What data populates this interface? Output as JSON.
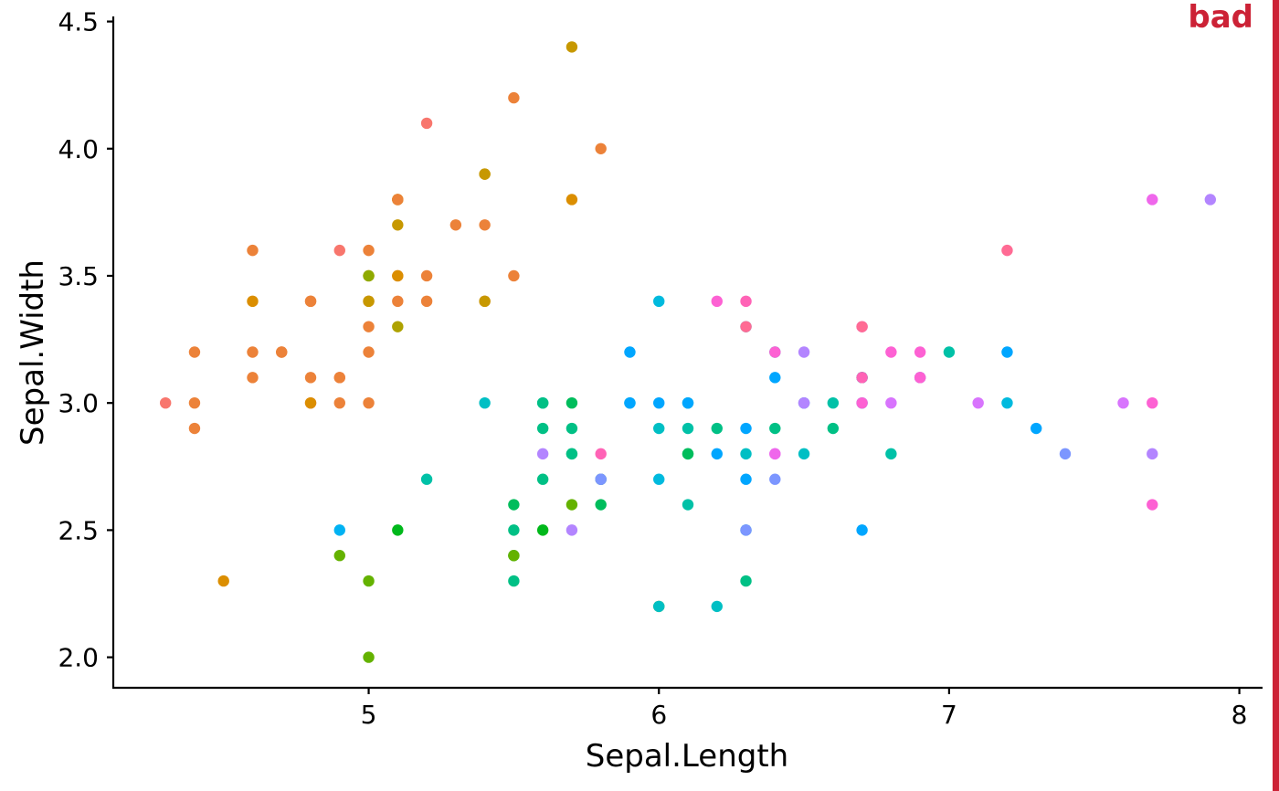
{
  "badge": {
    "label": "bad",
    "color": "#cc2236"
  },
  "chart_data": {
    "type": "scatter",
    "xlabel": "Sepal.Length",
    "ylabel": "Sepal.Width",
    "xlim": [
      4.12,
      8.08
    ],
    "ylim": [
      1.88,
      4.52
    ],
    "x_ticks": [
      {
        "value": 5,
        "label": "5"
      },
      {
        "value": 6,
        "label": "6"
      },
      {
        "value": 7,
        "label": "7"
      },
      {
        "value": 8,
        "label": "8"
      }
    ],
    "y_ticks": [
      {
        "value": 2.0,
        "label": "2.0"
      },
      {
        "value": 2.5,
        "label": "2.5"
      },
      {
        "value": 3.0,
        "label": "3.0"
      },
      {
        "value": 3.5,
        "label": "3.5"
      },
      {
        "value": 4.0,
        "label": "4.0"
      },
      {
        "value": 4.5,
        "label": "4.5"
      }
    ],
    "grid": false,
    "legend": "none",
    "color_scale": "discrete hue by group",
    "points": [
      [
        5.1,
        3.5,
        0.2
      ],
      [
        4.9,
        3.0,
        0.2
      ],
      [
        4.7,
        3.2,
        0.2
      ],
      [
        4.6,
        3.1,
        0.2
      ],
      [
        5.0,
        3.6,
        0.2
      ],
      [
        5.4,
        3.9,
        0.4
      ],
      [
        4.6,
        3.4,
        0.3
      ],
      [
        5.0,
        3.4,
        0.2
      ],
      [
        4.4,
        2.9,
        0.2
      ],
      [
        4.9,
        3.1,
        0.1
      ],
      [
        5.4,
        3.7,
        0.2
      ],
      [
        4.8,
        3.4,
        0.2
      ],
      [
        4.8,
        3.0,
        0.1
      ],
      [
        4.3,
        3.0,
        0.1
      ],
      [
        5.8,
        4.0,
        0.2
      ],
      [
        5.7,
        4.4,
        0.4
      ],
      [
        5.4,
        3.9,
        0.4
      ],
      [
        5.1,
        3.5,
        0.3
      ],
      [
        5.7,
        3.8,
        0.3
      ],
      [
        5.1,
        3.8,
        0.3
      ],
      [
        5.4,
        3.4,
        0.2
      ],
      [
        5.1,
        3.7,
        0.4
      ],
      [
        4.6,
        3.6,
        0.2
      ],
      [
        5.1,
        3.3,
        0.5
      ],
      [
        4.8,
        3.4,
        0.2
      ],
      [
        5.0,
        3.0,
        0.2
      ],
      [
        5.0,
        3.4,
        0.4
      ],
      [
        5.2,
        3.5,
        0.2
      ],
      [
        5.2,
        3.4,
        0.2
      ],
      [
        4.7,
        3.2,
        0.2
      ],
      [
        4.8,
        3.1,
        0.2
      ],
      [
        5.4,
        3.4,
        0.4
      ],
      [
        5.2,
        4.1,
        0.1
      ],
      [
        5.5,
        4.2,
        0.2
      ],
      [
        4.9,
        3.1,
        0.2
      ],
      [
        5.0,
        3.2,
        0.2
      ],
      [
        5.5,
        3.5,
        0.2
      ],
      [
        4.9,
        3.6,
        0.1
      ],
      [
        4.4,
        3.0,
        0.2
      ],
      [
        5.1,
        3.4,
        0.2
      ],
      [
        5.0,
        3.5,
        0.3
      ],
      [
        4.5,
        2.3,
        0.3
      ],
      [
        4.4,
        3.2,
        0.2
      ],
      [
        5.0,
        3.5,
        0.6
      ],
      [
        5.1,
        3.8,
        0.4
      ],
      [
        4.8,
        3.0,
        0.3
      ],
      [
        5.1,
        3.8,
        0.2
      ],
      [
        4.6,
        3.2,
        0.2
      ],
      [
        5.3,
        3.7,
        0.2
      ],
      [
        5.0,
        3.3,
        0.2
      ],
      [
        7.0,
        3.2,
        1.4
      ],
      [
        6.4,
        3.2,
        1.5
      ],
      [
        6.9,
        3.1,
        1.5
      ],
      [
        5.5,
        2.3,
        1.3
      ],
      [
        6.5,
        2.8,
        1.5
      ],
      [
        5.7,
        2.8,
        1.3
      ],
      [
        6.3,
        3.3,
        1.6
      ],
      [
        4.9,
        2.4,
        1.0
      ],
      [
        6.6,
        2.9,
        1.3
      ],
      [
        5.2,
        2.7,
        1.4
      ],
      [
        5.0,
        2.0,
        1.0
      ],
      [
        5.9,
        3.0,
        1.5
      ],
      [
        6.0,
        2.2,
        1.0
      ],
      [
        6.1,
        2.9,
        1.4
      ],
      [
        5.6,
        2.9,
        1.3
      ],
      [
        6.7,
        3.1,
        1.4
      ],
      [
        5.6,
        3.0,
        1.5
      ],
      [
        5.8,
        2.7,
        1.0
      ],
      [
        6.2,
        2.2,
        1.5
      ],
      [
        5.6,
        2.5,
        1.1
      ],
      [
        5.9,
        3.2,
        1.8
      ],
      [
        6.1,
        2.8,
        1.3
      ],
      [
        6.3,
        2.5,
        1.5
      ],
      [
        6.1,
        2.8,
        1.2
      ],
      [
        6.4,
        2.9,
        1.3
      ],
      [
        6.6,
        3.0,
        1.4
      ],
      [
        6.8,
        2.8,
        1.4
      ],
      [
        6.7,
        3.0,
        1.7
      ],
      [
        6.0,
        2.9,
        1.5
      ],
      [
        5.7,
        2.6,
        1.0
      ],
      [
        5.5,
        2.4,
        1.1
      ],
      [
        5.5,
        2.4,
        1.0
      ],
      [
        5.8,
        2.7,
        1.2
      ],
      [
        6.0,
        2.7,
        1.6
      ],
      [
        5.4,
        3.0,
        1.5
      ],
      [
        6.0,
        3.4,
        1.6
      ],
      [
        6.7,
        3.1,
        1.5
      ],
      [
        6.3,
        2.3,
        1.3
      ],
      [
        5.6,
        3.0,
        1.3
      ],
      [
        5.5,
        2.5,
        1.3
      ],
      [
        5.5,
        2.6,
        1.2
      ],
      [
        6.1,
        3.0,
        1.4
      ],
      [
        5.8,
        2.6,
        1.2
      ],
      [
        5.0,
        2.3,
        1.0
      ],
      [
        5.6,
        2.7,
        1.3
      ],
      [
        5.7,
        3.0,
        1.2
      ],
      [
        5.7,
        2.9,
        1.3
      ],
      [
        6.2,
        2.9,
        1.3
      ],
      [
        5.1,
        2.5,
        1.1
      ],
      [
        5.7,
        2.8,
        1.3
      ],
      [
        6.3,
        3.3,
        2.5
      ],
      [
        5.8,
        2.7,
        1.9
      ],
      [
        7.1,
        3.0,
        2.1
      ],
      [
        6.3,
        2.9,
        1.8
      ],
      [
        6.5,
        3.0,
        2.2
      ],
      [
        7.6,
        3.0,
        2.1
      ],
      [
        4.9,
        2.5,
        1.7
      ],
      [
        7.3,
        2.9,
        1.8
      ],
      [
        6.7,
        2.5,
        1.8
      ],
      [
        7.2,
        3.6,
        2.5
      ],
      [
        6.5,
        3.2,
        2.0
      ],
      [
        6.4,
        2.7,
        1.9
      ],
      [
        6.8,
        3.0,
        2.1
      ],
      [
        5.7,
        2.5,
        2.0
      ],
      [
        5.8,
        2.8,
        2.4
      ],
      [
        6.4,
        3.2,
        2.3
      ],
      [
        6.5,
        3.0,
        1.8
      ],
      [
        7.7,
        3.8,
        2.2
      ],
      [
        7.7,
        2.6,
        2.3
      ],
      [
        6.0,
        2.2,
        1.5
      ],
      [
        6.9,
        3.2,
        2.3
      ],
      [
        5.6,
        2.8,
        2.0
      ],
      [
        7.7,
        2.8,
        2.0
      ],
      [
        6.3,
        2.7,
        1.8
      ],
      [
        6.7,
        3.3,
        2.1
      ],
      [
        7.2,
        3.2,
        1.8
      ],
      [
        6.2,
        2.8,
        1.8
      ],
      [
        6.1,
        3.0,
        1.8
      ],
      [
        6.4,
        2.8,
        2.1
      ],
      [
        7.2,
        3.0,
        1.6
      ],
      [
        7.4,
        2.8,
        1.9
      ],
      [
        7.9,
        3.8,
        2.0
      ],
      [
        6.4,
        2.8,
        2.2
      ],
      [
        6.3,
        2.8,
        1.5
      ],
      [
        6.1,
        2.6,
        1.4
      ],
      [
        7.7,
        3.0,
        2.3
      ],
      [
        6.3,
        3.4,
        2.4
      ],
      [
        6.4,
        3.1,
        1.8
      ],
      [
        6.0,
        3.0,
        1.8
      ],
      [
        6.9,
        3.1,
        2.1
      ],
      [
        6.7,
        3.1,
        2.4
      ],
      [
        6.9,
        3.1,
        2.3
      ],
      [
        5.8,
        2.7,
        1.9
      ],
      [
        6.8,
        3.2,
        2.3
      ],
      [
        6.7,
        3.3,
        2.5
      ],
      [
        6.7,
        3.0,
        2.3
      ],
      [
        6.3,
        2.5,
        1.9
      ],
      [
        6.5,
        3.0,
        2.0
      ],
      [
        6.2,
        3.4,
        2.3
      ],
      [
        5.9,
        3.0,
        1.8
      ]
    ],
    "point_fields": [
      "x",
      "y",
      "group"
    ]
  }
}
